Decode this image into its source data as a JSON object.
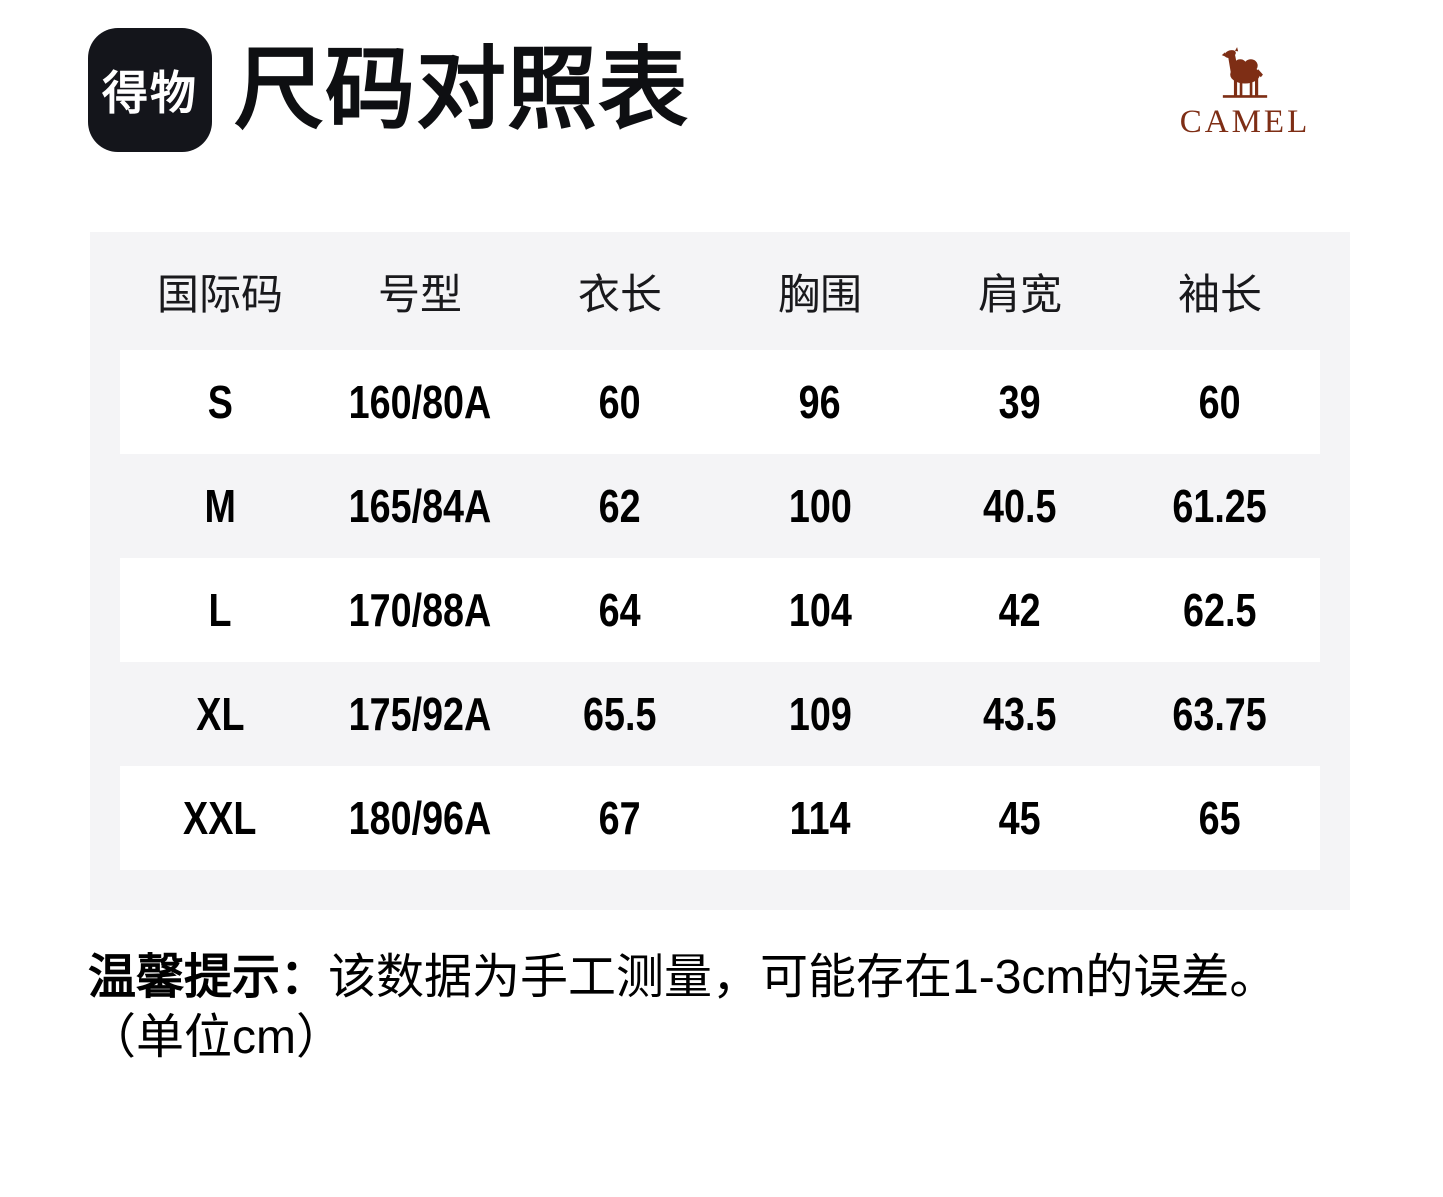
{
  "header": {
    "logo_text": "得物",
    "title": "尺码对照表",
    "brand_name": "CAMEL"
  },
  "table": {
    "columns": [
      "国际码",
      "号型",
      "衣长",
      "胸围",
      "肩宽",
      "袖长"
    ],
    "rows": [
      [
        "S",
        "160/80A",
        "60",
        "96",
        "39",
        "60"
      ],
      [
        "M",
        "165/84A",
        "62",
        "100",
        "40.5",
        "61.25"
      ],
      [
        "L",
        "170/88A",
        "64",
        "104",
        "42",
        "62.5"
      ],
      [
        "XL",
        "175/92A",
        "65.5",
        "109",
        "43.5",
        "63.75"
      ],
      [
        "XXL",
        "180/96A",
        "67",
        "114",
        "45",
        "65"
      ]
    ]
  },
  "note": {
    "label": "温馨提示：",
    "text": "该数据为手工测量，可能存在1-3cm的误差。",
    "unit_line": "（单位cm）"
  },
  "colors": {
    "logo_bg": "#14151b",
    "brand": "#7e2e15",
    "panel_bg": "#f4f4f6"
  }
}
